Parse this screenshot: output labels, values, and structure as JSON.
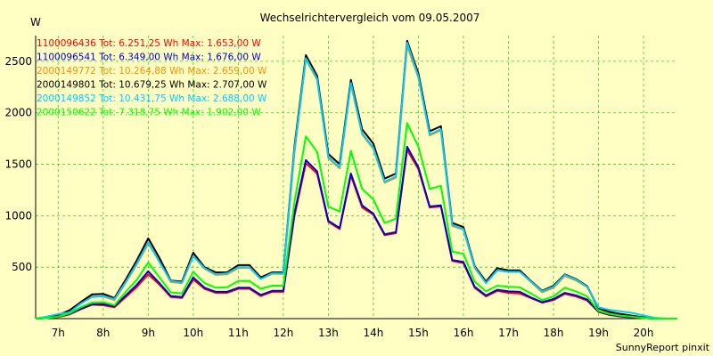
{
  "chart_data": {
    "type": "line",
    "title": "Wechselrichtervergleich vom 09.05.2007",
    "ylabel": "W",
    "xlabel": "",
    "ylim": [
      0,
      2750
    ],
    "y_ticks": [
      500,
      1000,
      1500,
      2000,
      2500
    ],
    "x_range": [
      6.5,
      20.75
    ],
    "x_ticks": [
      {
        "x": 7,
        "label": "7h"
      },
      {
        "x": 8,
        "label": "8h"
      },
      {
        "x": 9,
        "label": "9h"
      },
      {
        "x": 10,
        "label": "10h"
      },
      {
        "x": 11,
        "label": "11h"
      },
      {
        "x": 12,
        "label": "12h"
      },
      {
        "x": 13,
        "label": "13h"
      },
      {
        "x": 14,
        "label": "14h"
      },
      {
        "x": 15,
        "label": "15h"
      },
      {
        "x": 16,
        "label": "16h"
      },
      {
        "x": 17,
        "label": "17h"
      },
      {
        "x": 18,
        "label": "18h"
      },
      {
        "x": 19,
        "label": "19h"
      },
      {
        "x": 20,
        "label": "20h"
      }
    ],
    "grid": true,
    "legend_position": "top-left",
    "x": [
      6.5,
      6.75,
      7.0,
      7.25,
      7.5,
      7.75,
      8.0,
      8.25,
      8.5,
      8.75,
      9.0,
      9.25,
      9.5,
      9.75,
      10.0,
      10.25,
      10.5,
      10.75,
      11.0,
      11.25,
      11.5,
      11.75,
      12.0,
      12.25,
      12.5,
      12.75,
      13.0,
      13.25,
      13.5,
      13.75,
      14.0,
      14.25,
      14.5,
      14.75,
      15.0,
      15.25,
      15.5,
      15.75,
      16.0,
      16.25,
      16.5,
      16.75,
      17.0,
      17.25,
      17.5,
      17.75,
      18.0,
      18.25,
      18.5,
      18.75,
      19.0,
      19.25,
      19.5,
      19.75,
      20.0,
      20.25,
      20.5,
      20.75
    ],
    "series": [
      {
        "name": "1100096436 Tot: 6.251,25 Wh Max: 1.653,00 W",
        "color": "#ff0000",
        "dash": "",
        "values": [
          0,
          5,
          15,
          40,
          90,
          135,
          130,
          110,
          210,
          310,
          430,
          330,
          210,
          200,
          380,
          290,
          250,
          250,
          290,
          290,
          220,
          260,
          260,
          1000,
          1510,
          1410,
          940,
          870,
          1390,
          1080,
          1010,
          810,
          830,
          1640,
          1450,
          1080,
          1090,
          560,
          540,
          300,
          215,
          270,
          250,
          245,
          200,
          155,
          180,
          240,
          215,
          175,
          65,
          35,
          20,
          12,
          5,
          0,
          0,
          0
        ]
      },
      {
        "name": "1100096541 Tot: 6.349,00 Wh Max: 1.676,00 W",
        "color": "#0000cc",
        "dash": "",
        "values": [
          0,
          5,
          20,
          45,
          95,
          140,
          140,
          120,
          225,
          330,
          460,
          345,
          220,
          210,
          400,
          300,
          260,
          260,
          300,
          300,
          230,
          270,
          270,
          1030,
          1540,
          1430,
          950,
          880,
          1410,
          1100,
          1020,
          820,
          840,
          1670,
          1470,
          1090,
          1100,
          570,
          550,
          310,
          225,
          280,
          265,
          260,
          205,
          160,
          190,
          250,
          225,
          185,
          70,
          40,
          22,
          15,
          6,
          0,
          0,
          0
        ]
      },
      {
        "name": "2000149772 Tot: 10.264,88 Wh Max: 2.659,00 W",
        "color": "#ff8c00",
        "dash": "",
        "values": [
          0,
          8,
          30,
          70,
          150,
          215,
          215,
          180,
          350,
          530,
          730,
          560,
          355,
          345,
          605,
          485,
          425,
          430,
          490,
          495,
          385,
          435,
          435,
          1620,
          2520,
          2320,
          1560,
          1460,
          2280,
          1790,
          1650,
          1320,
          1370,
          2650,
          2340,
          1780,
          1830,
          900,
          865,
          490,
          350,
          470,
          455,
          455,
          355,
          255,
          300,
          415,
          370,
          305,
          95,
          60,
          40,
          25,
          10,
          0,
          0,
          0
        ]
      },
      {
        "name": "2000149801 Tot: 10.679,25 Wh Max: 2.707,00 W",
        "color": "#000000",
        "dash": "",
        "values": [
          0,
          10,
          35,
          80,
          160,
          235,
          240,
          200,
          380,
          570,
          780,
          590,
          370,
          360,
          640,
          500,
          450,
          450,
          520,
          520,
          400,
          450,
          450,
          1680,
          2560,
          2360,
          1600,
          1500,
          2320,
          1840,
          1700,
          1360,
          1410,
          2700,
          2380,
          1820,
          1870,
          930,
          890,
          510,
          360,
          490,
          470,
          470,
          365,
          270,
          320,
          430,
          385,
          315,
          100,
          65,
          45,
          28,
          12,
          0,
          0,
          0
        ]
      },
      {
        "name": "2000149852 Tot: 10.431,75 Wh Max: 2.688,00 W",
        "color": "#00ccff",
        "dash": "",
        "values": [
          0,
          20,
          45,
          60,
          145,
          210,
          220,
          190,
          355,
          540,
          740,
          550,
          365,
          350,
          610,
          490,
          430,
          440,
          500,
          500,
          385,
          440,
          440,
          1650,
          2530,
          2330,
          1570,
          1470,
          2290,
          1800,
          1660,
          1330,
          1380,
          2680,
          2350,
          1790,
          1840,
          910,
          870,
          500,
          345,
          470,
          455,
          455,
          360,
          265,
          310,
          425,
          380,
          310,
          110,
          85,
          70,
          55,
          30,
          8,
          0,
          0
        ]
      },
      {
        "name": "2000150622 Tot: 7.318,75 Wh Max: 1.902,00 W",
        "color": "#00ff00",
        "dash": "",
        "values": [
          0,
          5,
          20,
          50,
          110,
          155,
          160,
          130,
          260,
          380,
          545,
          400,
          255,
          245,
          455,
          345,
          300,
          305,
          365,
          365,
          290,
          320,
          320,
          1140,
          1770,
          1620,
          1090,
          1040,
          1630,
          1260,
          1160,
          930,
          970,
          1900,
          1670,
          1260,
          1290,
          650,
          630,
          360,
          265,
          320,
          310,
          305,
          245,
          180,
          215,
          300,
          265,
          215,
          75,
          45,
          28,
          18,
          7,
          0,
          0,
          0
        ]
      }
    ]
  },
  "footer": "SunnyReport pinxit"
}
